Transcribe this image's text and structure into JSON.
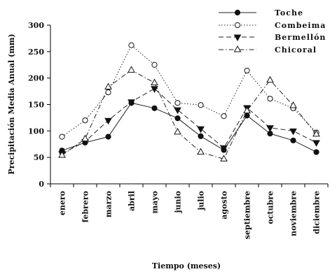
{
  "chart_data": {
    "type": "line",
    "title": "",
    "xlabel": "Tiempo (meses)",
    "ylabel": "Precipitación Media Anual (mm)",
    "ylim": [
      0,
      300
    ],
    "yticks": [
      0,
      50,
      100,
      150,
      200,
      250,
      300
    ],
    "categories": [
      "enero",
      "febrero",
      "marzo",
      "abril",
      "mayo",
      "junio",
      "julio",
      "agosto",
      "septiembre",
      "octubre",
      "noviembre",
      "diciembre"
    ],
    "legend_position": "top-right",
    "grid": false,
    "series": [
      {
        "name": "Toche",
        "marker": "filled-circle",
        "dash": "solid",
        "values": [
          63,
          78,
          89,
          153,
          143,
          124,
          90,
          64,
          129,
          95,
          82,
          60
        ]
      },
      {
        "name": "Combeima",
        "marker": "open-circle",
        "dash": "dotted",
        "values": [
          89,
          120,
          173,
          262,
          225,
          153,
          149,
          128,
          214,
          161,
          143,
          97
        ]
      },
      {
        "name": "Bermellón",
        "marker": "filled-triangle-down",
        "dash": "dashed",
        "values": [
          57,
          80,
          120,
          155,
          180,
          140,
          104,
          68,
          144,
          106,
          100,
          78
        ]
      },
      {
        "name": "Chicoral",
        "marker": "open-triangle-up",
        "dash": "dash-dot",
        "values": [
          54,
          85,
          183,
          215,
          191,
          98,
          60,
          47,
          138,
          196,
          148,
          94
        ]
      }
    ]
  }
}
